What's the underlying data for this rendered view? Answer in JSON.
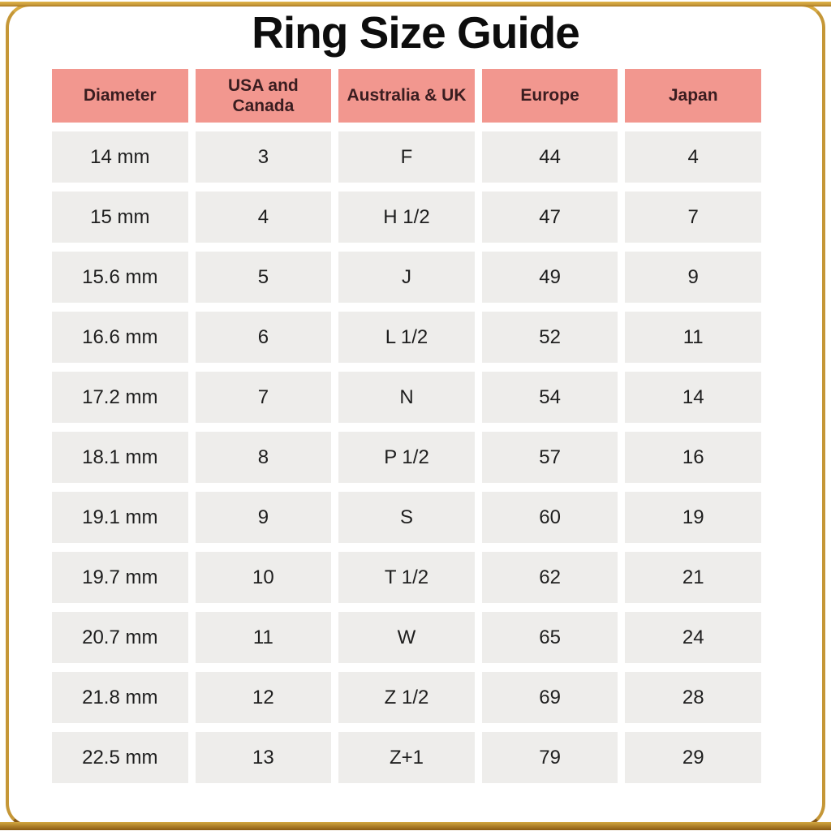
{
  "title": "Ring Size Guide",
  "chart_data": {
    "type": "table",
    "title": "Ring Size Guide",
    "columns": [
      "Diameter",
      "USA and\nCanada",
      "Australia & UK",
      "Europe",
      "Japan"
    ],
    "rows": [
      [
        "14 mm",
        "3",
        "F",
        "44",
        "4"
      ],
      [
        "15 mm",
        "4",
        "H 1/2",
        "47",
        "7"
      ],
      [
        "15.6 mm",
        "5",
        "J",
        "49",
        "9"
      ],
      [
        "16.6 mm",
        "6",
        "L 1/2",
        "52",
        "11"
      ],
      [
        "17.2 mm",
        "7",
        "N",
        "54",
        "14"
      ],
      [
        "18.1 mm",
        "8",
        "P 1/2",
        "57",
        "16"
      ],
      [
        "19.1 mm",
        "9",
        "S",
        "60",
        "19"
      ],
      [
        "19.7 mm",
        "10",
        "T 1/2",
        "62",
        "21"
      ],
      [
        "20.7 mm",
        "11",
        "W",
        "65",
        "24"
      ],
      [
        "21.8 mm",
        "12",
        "Z 1/2",
        "69",
        "28"
      ],
      [
        "22.5 mm",
        "13",
        "Z+1",
        "79",
        "29"
      ]
    ]
  },
  "colors": {
    "header_bg": "#F2978F",
    "header_text": "#3A1D20",
    "cell_bg": "#EEEDEB",
    "cell_text": "#1E1E1E",
    "gold_light": "#E0B44C",
    "gold_mid": "#C59737",
    "gold_dark": "#8A5A14",
    "title_text": "#0D0D0D"
  }
}
